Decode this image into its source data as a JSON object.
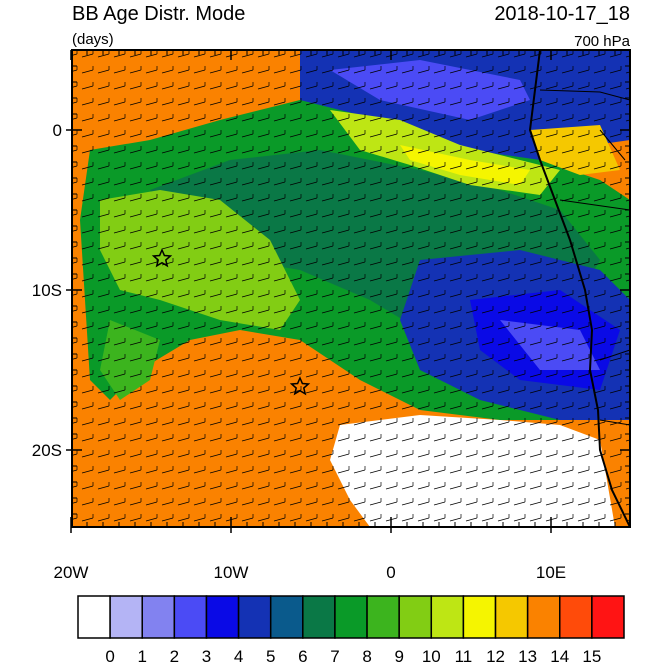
{
  "header": {
    "title": "BB Age Distr. Mode",
    "units": "(days)",
    "datetime": "2018-10-17_18",
    "level": "700 hPa"
  },
  "map": {
    "lat_ticks": [
      {
        "value": 0,
        "label": "0"
      },
      {
        "value": -10,
        "label": "10S"
      },
      {
        "value": -20,
        "label": "20S"
      }
    ],
    "lon_ticks": [
      {
        "value": -20,
        "label": "20W"
      },
      {
        "value": -10,
        "label": "10W"
      },
      {
        "value": 0,
        "label": "0"
      },
      {
        "value": 10,
        "label": "10E"
      }
    ]
  },
  "colorbar": {
    "labels": [
      0,
      1,
      2,
      3,
      4,
      5,
      6,
      7,
      8,
      9,
      10,
      11,
      12,
      13,
      14,
      15
    ],
    "colors": [
      "#ffffff",
      "#b4b4f5",
      "#8282f0",
      "#4b4bf5",
      "#0a0ae6",
      "#1432b4",
      "#0a5a8c",
      "#0a7846",
      "#0a9a28",
      "#3cb41e",
      "#82cd14",
      "#bee614",
      "#f5f500",
      "#f5c800",
      "#fa8200",
      "#ff4b0a",
      "#ff1414"
    ]
  }
}
